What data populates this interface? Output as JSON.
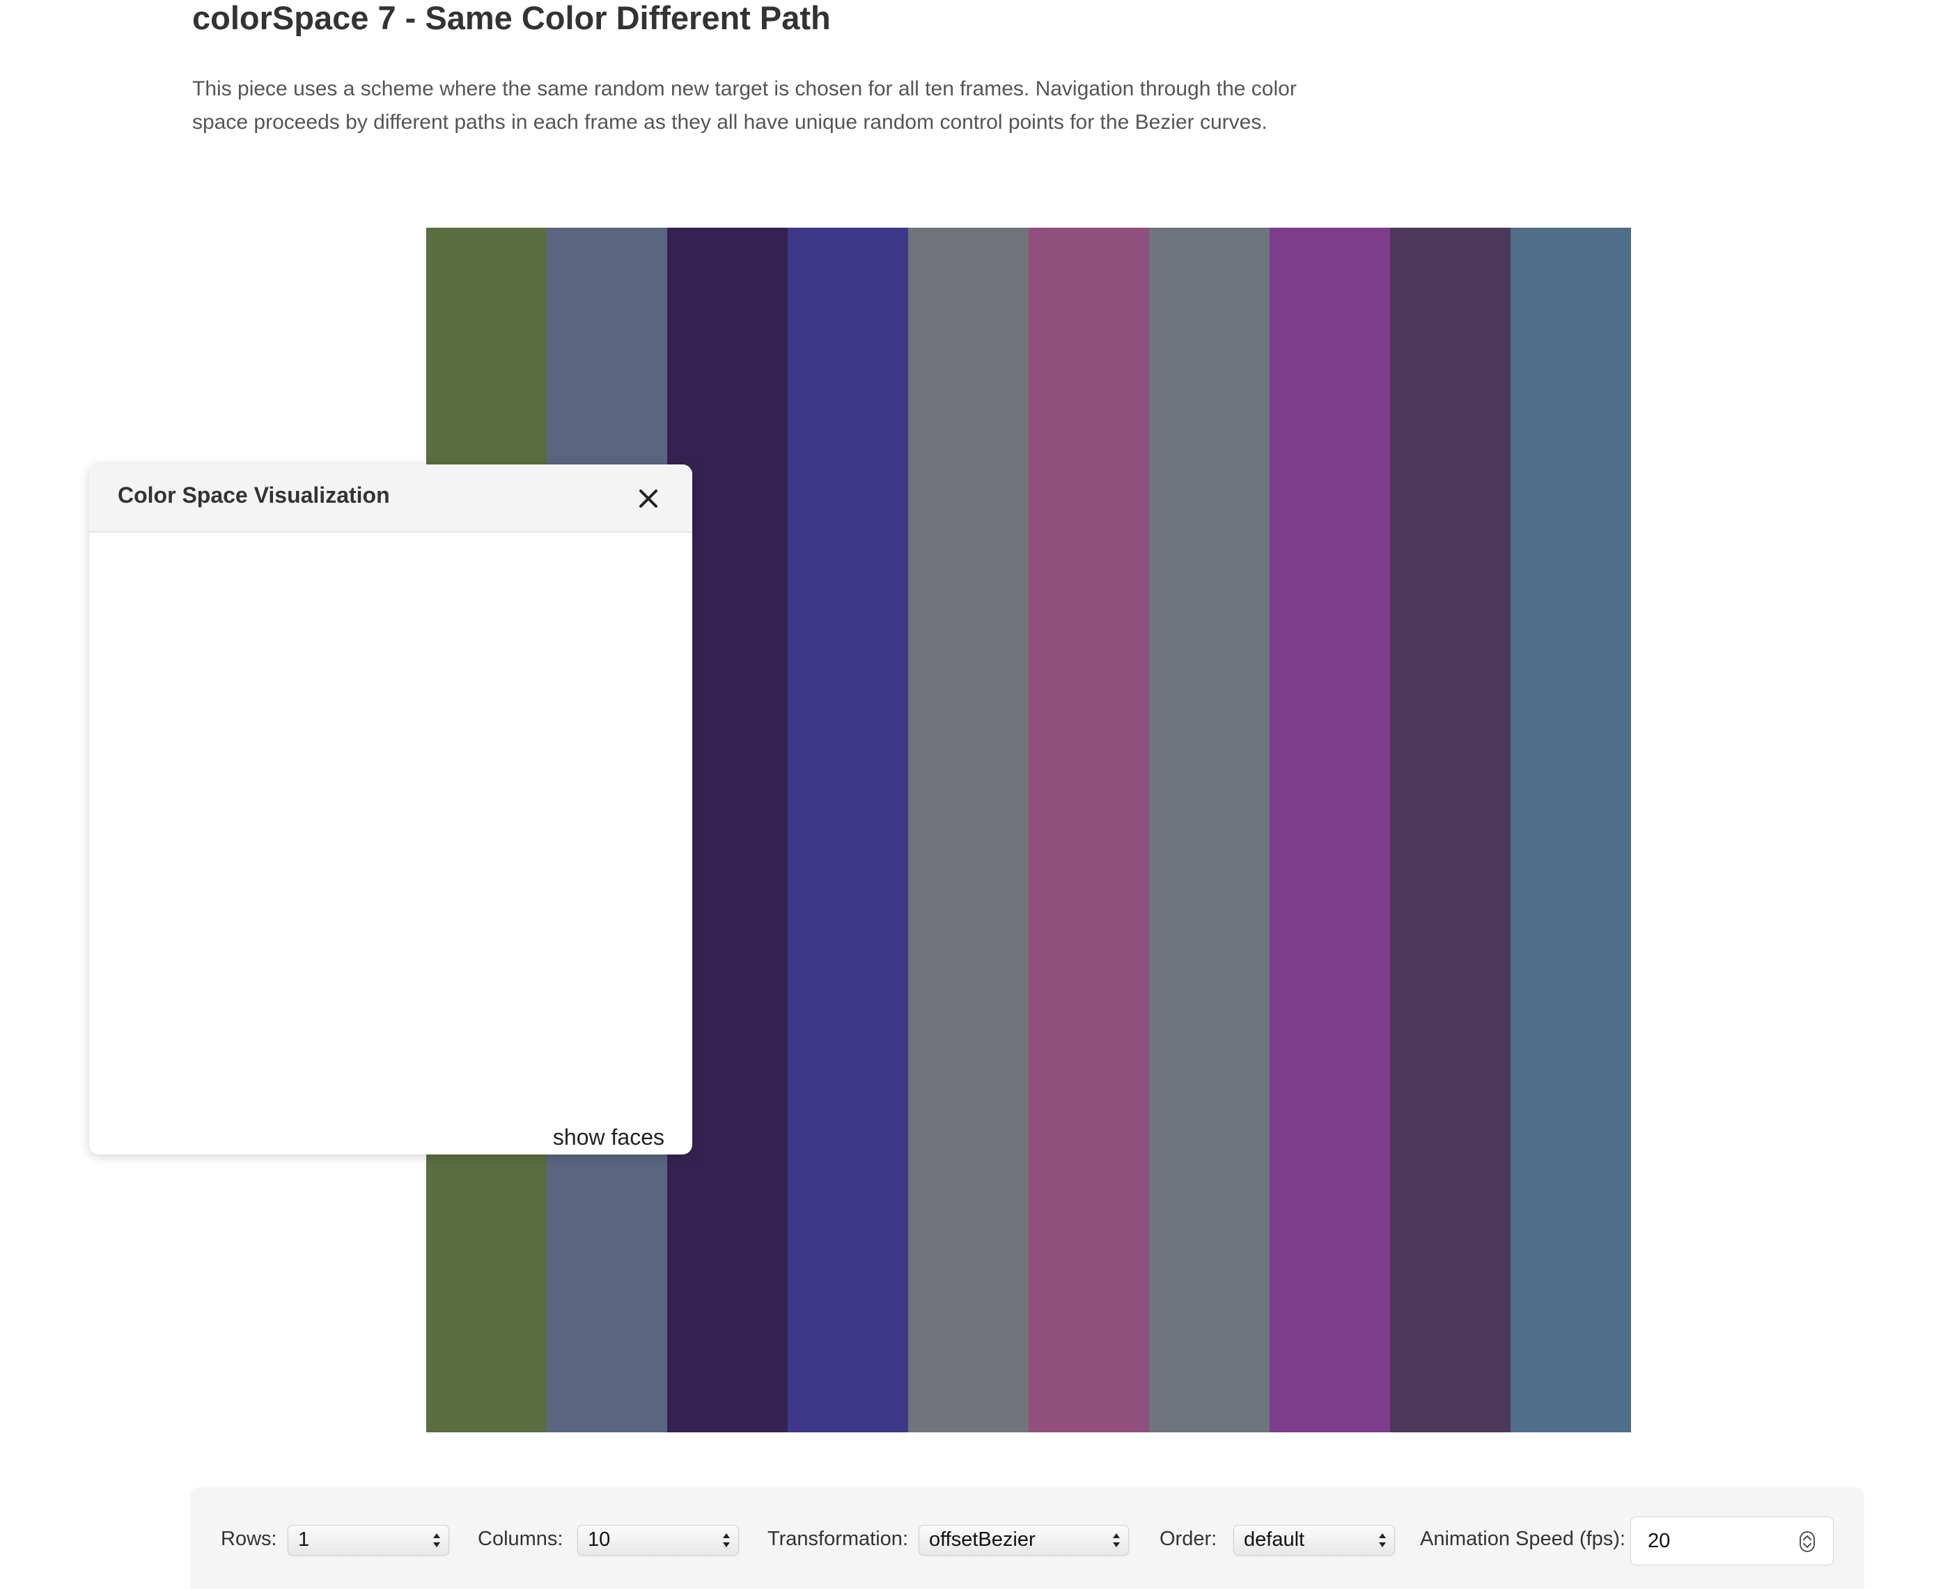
{
  "page": {
    "title": "colorSpace 7 - Same Color Different Path",
    "description": "This piece uses a scheme where the same random new target is chosen for all ten frames. Navigation through the color space proceeds by different paths in each frame as they all have unique random control points for the Bezier curves."
  },
  "frames": {
    "colors": [
      "#5a6e41",
      "#5a6680",
      "#362250",
      "#3d3888",
      "#717478",
      "#914f7e",
      "#6d747b",
      "#7d3d8b",
      "#4e385a",
      "#506e88"
    ]
  },
  "viz_panel": {
    "title": "Color Space Visualization",
    "show_faces_label": "show faces",
    "close_icon": "close-icon",
    "vertex_colors": {
      "blue": "#0000ff",
      "magenta": "#ff00ff",
      "cyan": "#00ffff",
      "red": "#ff0000",
      "green": "#00ff00",
      "yellow": "#ffff00",
      "black": "#000000"
    }
  },
  "controls": {
    "rows": {
      "label": "Rows:",
      "value": "1"
    },
    "columns": {
      "label": "Columns:",
      "value": "10"
    },
    "transformation": {
      "label": "Transformation:",
      "value": "offsetBezier"
    },
    "order": {
      "label": "Order:",
      "value": "default"
    },
    "animation_speed": {
      "label": "Animation Speed (fps):",
      "value": "20"
    }
  }
}
